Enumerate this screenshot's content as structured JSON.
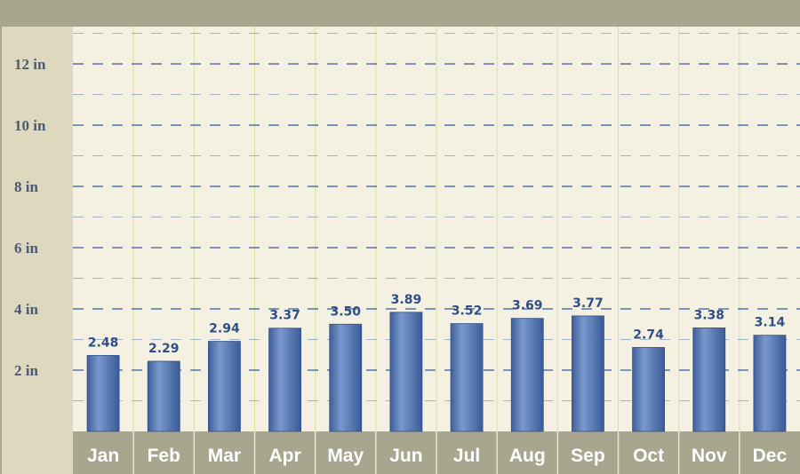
{
  "chart_data": {
    "type": "bar",
    "categories": [
      "Jan",
      "Feb",
      "Mar",
      "Apr",
      "May",
      "Jun",
      "Jul",
      "Aug",
      "Sep",
      "Oct",
      "Nov",
      "Dec"
    ],
    "values": [
      2.48,
      2.29,
      2.94,
      3.37,
      3.5,
      3.89,
      3.52,
      3.69,
      3.77,
      2.74,
      3.38,
      3.14
    ],
    "data_labels": [
      "2.48",
      "2.29",
      "2.94",
      "3.37",
      "3.50",
      "3.89",
      "3.52",
      "3.69",
      "3.77",
      "2.74",
      "3.38",
      "3.14"
    ],
    "y_ticks": [
      {
        "value": 2,
        "label": "2 in"
      },
      {
        "value": 4,
        "label": "4 in"
      },
      {
        "value": 6,
        "label": "6 in"
      },
      {
        "value": 8,
        "label": "8 in"
      },
      {
        "value": 10,
        "label": "10 in"
      },
      {
        "value": 12,
        "label": "12 in"
      }
    ],
    "ylim": [
      0,
      13
    ],
    "grid": true,
    "legend": "none",
    "colors": {
      "bar": "#5577b5",
      "bar_dark": "#2f4f86",
      "grid": "#4a6aa8",
      "plot_bg": "#f4f1e2",
      "frame": "#a9a690",
      "vgrid": "#d8e3a0"
    }
  }
}
